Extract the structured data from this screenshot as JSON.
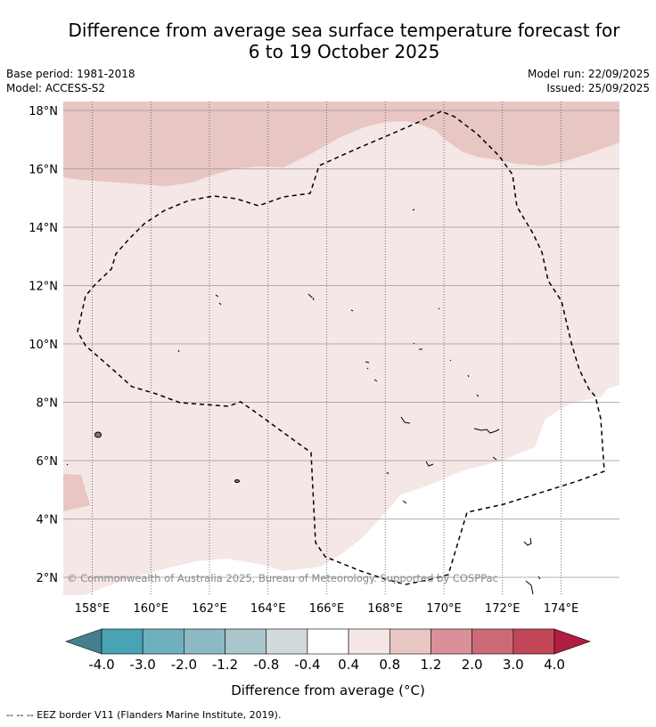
{
  "header": {
    "title_line1": "Difference from average sea surface temperature forecast for",
    "title_line2": "6 to 19 October 2025",
    "base_period": "Base period: 1981-2018",
    "model": "Model: ACCESS-S2",
    "model_run": "Model run: 22/09/2025",
    "issued": "Issued: 25/09/2025"
  },
  "map": {
    "copyright": "© Commonwealth of Australia 2025, Bureau of Meteorology. Supported by COSPPac",
    "lat_labels": [
      "18°N",
      "16°N",
      "14°N",
      "12°N",
      "10°N",
      "8°N",
      "6°N",
      "4°N",
      "2°N"
    ],
    "lon_labels": [
      "158°E",
      "160°E",
      "162°E",
      "164°E",
      "166°E",
      "168°E",
      "170°E",
      "172°E",
      "174°E"
    ],
    "colors": {
      "above_0_4": "#f4e7e6",
      "above_0_8": "#e8c6c3",
      "neutral": "#ffffff"
    }
  },
  "colorbar": {
    "tick_labels": [
      "-4.0",
      "-3.0",
      "-2.0",
      "-1.2",
      "-0.8",
      "-0.4",
      "0.4",
      "0.8",
      "1.2",
      "2.0",
      "3.0",
      "4.0"
    ],
    "colors": [
      "#447f8d",
      "#4aa2b5",
      "#6fb0bf",
      "#8db9c5",
      "#a9c6cc",
      "#d2d9da",
      "#ffffff",
      "#f4e7e6",
      "#e8c6c3",
      "#da9098",
      "#cc6a76",
      "#c24657",
      "#b01f40"
    ],
    "label": "Difference from average (°C)"
  },
  "footer": {
    "legend": "--  --  -- EEZ border V11 (Flanders Marine Institute, 2019)."
  }
}
